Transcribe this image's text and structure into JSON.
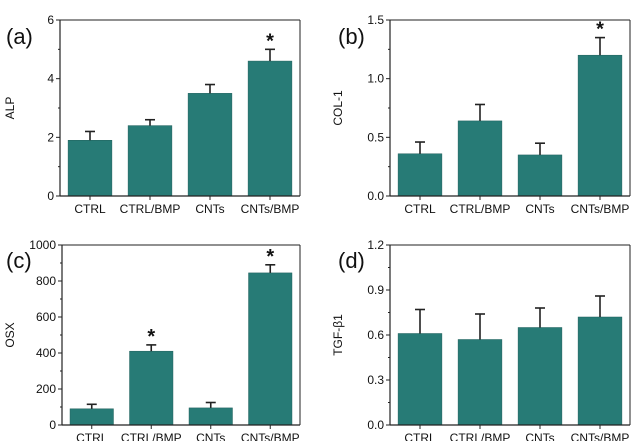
{
  "chart_data": [
    {
      "panel": "(a)",
      "type": "bar",
      "categories": [
        "CTRL",
        "CTRL/BMP",
        "CNTs",
        "CNTs/BMP"
      ],
      "values": [
        1.9,
        2.4,
        3.5,
        4.6
      ],
      "errors": [
        0.3,
        0.2,
        0.3,
        0.4
      ],
      "significant": [
        false,
        false,
        false,
        true
      ],
      "ylabel": "ALP",
      "ylim": [
        0,
        6
      ],
      "yticks": [
        "0",
        "2",
        "4",
        "6"
      ],
      "bar_color": "#277b76"
    },
    {
      "panel": "(b)",
      "type": "bar",
      "categories": [
        "CTRL",
        "CTRL/BMP",
        "CNTs",
        "CNTs/BMP"
      ],
      "values": [
        0.36,
        0.64,
        0.35,
        1.2
      ],
      "errors": [
        0.1,
        0.14,
        0.1,
        0.15
      ],
      "significant": [
        false,
        false,
        false,
        true
      ],
      "ylabel": "COL-1",
      "ylim": [
        0,
        1.5
      ],
      "yticks": [
        "0.0",
        "0.5",
        "1.0",
        "1.5"
      ],
      "bar_color": "#277b76"
    },
    {
      "panel": "(c)",
      "type": "bar",
      "categories": [
        "CTRL",
        "CTRL/BMP",
        "CNTs",
        "CNTs/BMP"
      ],
      "values": [
        90,
        410,
        95,
        845
      ],
      "errors": [
        25,
        35,
        30,
        45
      ],
      "significant": [
        false,
        true,
        false,
        true
      ],
      "ylabel": "OSX",
      "ylim": [
        0,
        1000
      ],
      "yticks": [
        "0",
        "200",
        "400",
        "600",
        "800",
        "1000"
      ],
      "bar_color": "#277b76"
    },
    {
      "panel": "(d)",
      "type": "bar",
      "categories": [
        "CTRL",
        "CTRL/BMP",
        "CNTs",
        "CNTs/BMP"
      ],
      "values": [
        0.61,
        0.57,
        0.65,
        0.72
      ],
      "errors": [
        0.16,
        0.17,
        0.13,
        0.14
      ],
      "significant": [
        false,
        false,
        false,
        false
      ],
      "ylabel": "TGF-β1",
      "ylim": [
        0,
        1.2
      ],
      "yticks": [
        "0.0",
        "0.3",
        "0.6",
        "0.9",
        "1.2"
      ],
      "bar_color": "#277b76"
    }
  ],
  "significance_marker": "*"
}
